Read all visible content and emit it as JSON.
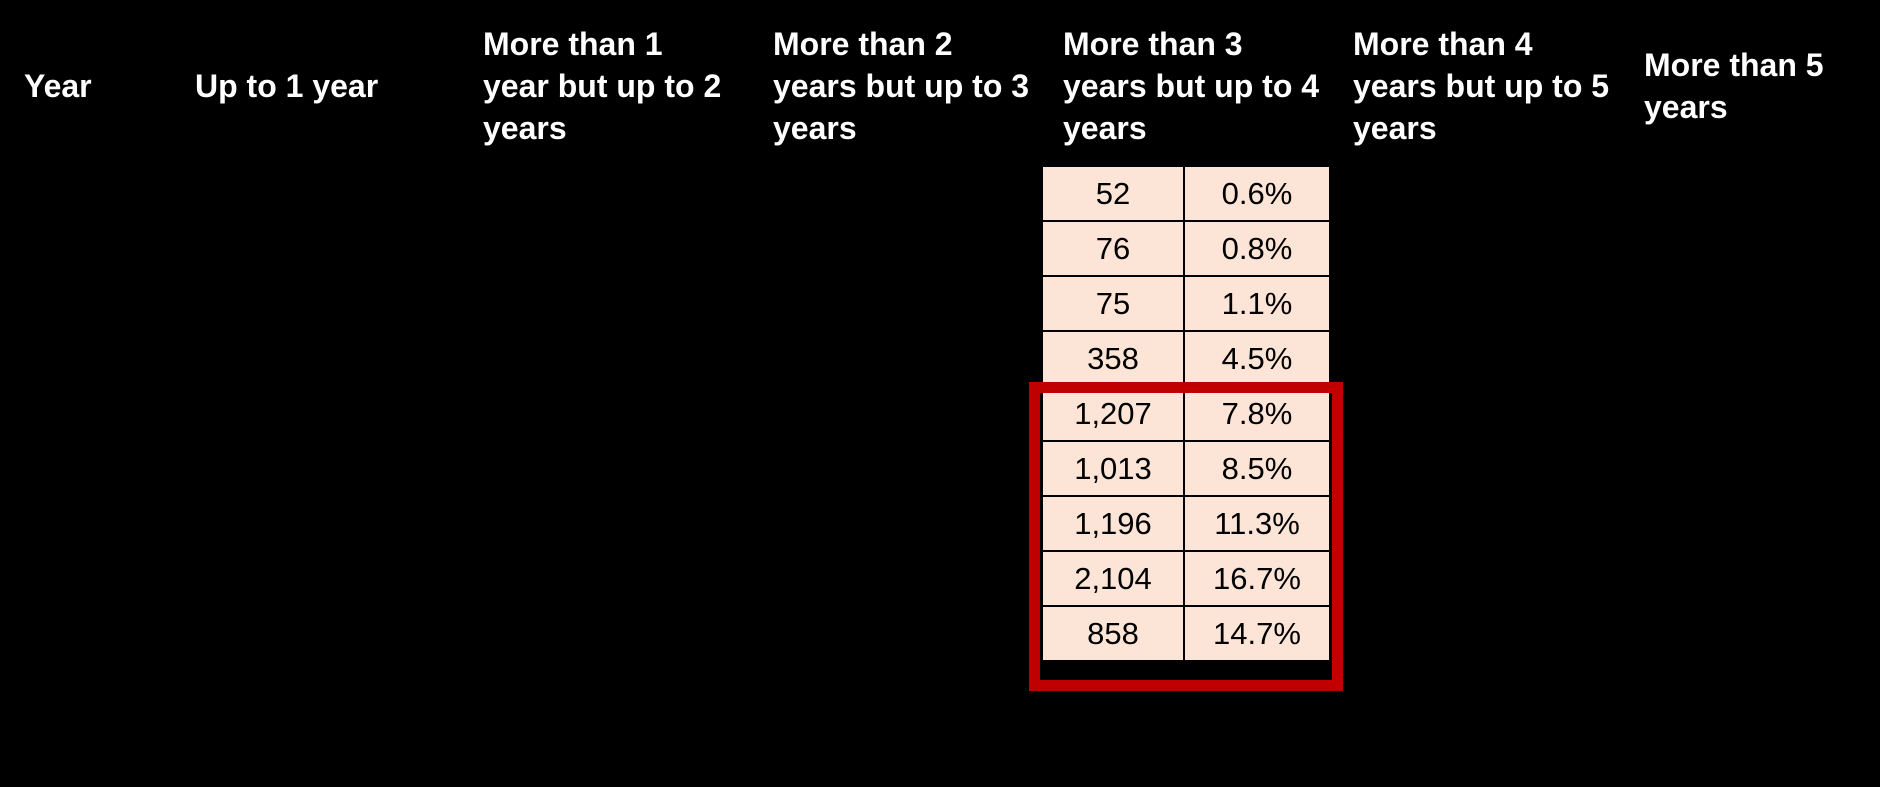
{
  "page": {
    "background_color": "#000000",
    "note_visible_content": "Redacted table on black background; only one data column visible"
  },
  "table": {
    "headers": [
      {
        "label": [
          "Year"
        ]
      },
      {
        "label": [
          "Up to 1 year"
        ]
      },
      {
        "label": [
          "More than 1",
          "year but up to 2",
          "years"
        ]
      },
      {
        "label": [
          "More than 2",
          "years but up to 3",
          "years"
        ]
      },
      {
        "label": [
          "More than 3",
          "years but up to 4",
          "years"
        ]
      },
      {
        "label": [
          "More than 4",
          "years but up to 5",
          "years"
        ]
      },
      {
        "label": [
          "More than 5",
          "years"
        ]
      }
    ],
    "rows": [
      {
        "count": "52",
        "percent": "0.6%",
        "highlighted": false
      },
      {
        "count": "76",
        "percent": "0.8%",
        "highlighted": false
      },
      {
        "count": "75",
        "percent": "1.1%",
        "highlighted": false
      },
      {
        "count": "358",
        "percent": "4.5%",
        "highlighted": false
      },
      {
        "count": "1,207",
        "percent": "7.8%",
        "highlighted": true
      },
      {
        "count": "1,013",
        "percent": "8.5%",
        "highlighted": true
      },
      {
        "count": "1,196",
        "percent": "11.3%",
        "highlighted": true
      },
      {
        "count": "2,104",
        "percent": "16.7%",
        "highlighted": true
      },
      {
        "count": "858",
        "percent": "14.7%",
        "highlighted": true
      }
    ]
  },
  "colors": {
    "cell_background": "#fce4d6",
    "cell_border": "#000000",
    "highlight_border": "#c00000",
    "header_text": "#ffffff",
    "cell_text": "#000000"
  },
  "chart_data": {
    "type": "table",
    "columns": [
      "Year",
      "Up to 1 year",
      "More than 1 year but up to 2 years",
      "More than 2 years but up to 3 years",
      "More than 3 years but up to 4 years",
      "More than 4 years but up to 5 years",
      "More than 5 years"
    ],
    "visible_column": "More than 3 years but up to 4 years",
    "counts": [
      52,
      76,
      75,
      358,
      1207,
      1013,
      1196,
      2104,
      858
    ],
    "percents": [
      0.6,
      0.8,
      1.1,
      4.5,
      7.8,
      8.5,
      11.3,
      16.7,
      14.7
    ],
    "highlighted_row_indices": [
      4,
      5,
      6,
      7,
      8
    ]
  }
}
